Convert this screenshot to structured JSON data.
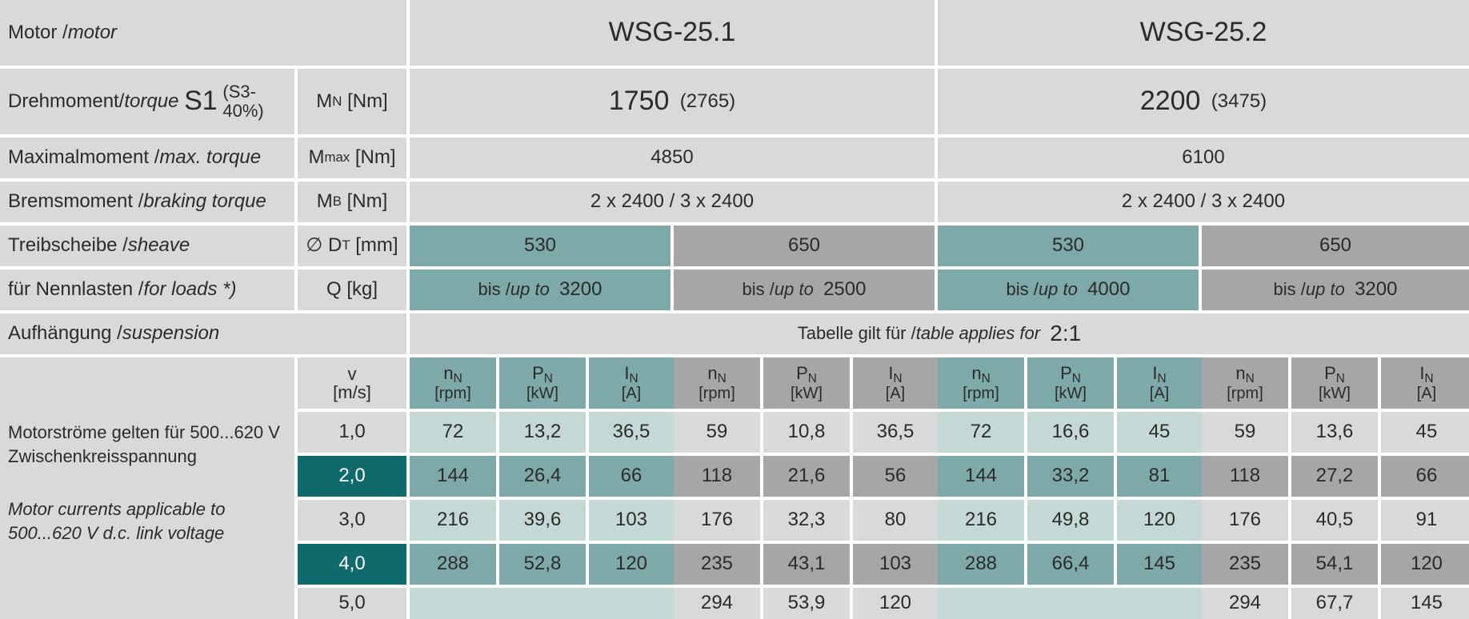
{
  "row_motor": {
    "label_de": "Motor / ",
    "label_en": "motor",
    "m1": "WSG-25.1",
    "m2": "WSG-25.2"
  },
  "row_torque": {
    "label_de": "Drehmoment/",
    "label_en": "torque",
    "s1": "S1",
    "s3": "(S3-40%)",
    "sym": "M",
    "sub": "N",
    "unit": "[Nm]",
    "v1": "1750",
    "v1b": "(2765)",
    "v2": "2200",
    "v2b": "(3475)"
  },
  "row_maxtorque": {
    "label_de": "Maximalmoment / ",
    "label_en": "max. torque",
    "sym": "M",
    "sub": "max",
    "unit": "[Nm]",
    "v1": "4850",
    "v2": "6100"
  },
  "row_brake": {
    "label_de": "Bremsmoment / ",
    "label_en": "braking torque",
    "sym": "M",
    "sub": "B",
    "unit": "[Nm]",
    "v1": "2 x 2400 / 3 x 2400",
    "v2": "2 x 2400 / 3 x 2400"
  },
  "row_sheave": {
    "label_de": "Treibscheibe /",
    "label_en": "sheave",
    "sym": "∅ D",
    "sub": "T",
    "unit": "[mm]",
    "values": [
      "530",
      "650",
      "530",
      "650"
    ]
  },
  "row_loads": {
    "label_de": "für Nennlasten /",
    "label_en": "for loads *)",
    "unit": "Q [kg]",
    "bis": "bis /",
    "upto": "up to",
    "values": [
      "3200",
      "2500",
      "4000",
      "3200"
    ]
  },
  "row_susp": {
    "label_de": "Aufhängung /",
    "label_en": "suspension",
    "text_de": "Tabelle gilt für / ",
    "text_en": "table applies for",
    "ratio": "2:1"
  },
  "speed_header": {
    "v": "v",
    "unit": "[m/s]"
  },
  "col_headers": [
    {
      "sym": "n",
      "sub": "N",
      "unit": "[rpm]"
    },
    {
      "sym": "P",
      "sub": "N",
      "unit": "[kW]"
    },
    {
      "sym": "I",
      "sub": "N",
      "unit": "[A]"
    }
  ],
  "note": {
    "de_line1": "Motorströme gelten für 500...620 V",
    "de_line2": "Zwischenkreisspannung",
    "en_line1": "Motor currents applicable to",
    "en_line2": "500...620 V d.c. link voltage"
  },
  "speeds": [
    "1,0",
    "2,0",
    "3,0",
    "4,0",
    "5,0"
  ],
  "table": [
    [
      "72",
      "13,2",
      "36,5",
      "59",
      "10,8",
      "36,5",
      "72",
      "16,6",
      "45",
      "59",
      "13,6",
      "45"
    ],
    [
      "144",
      "26,4",
      "66",
      "118",
      "21,6",
      "56",
      "144",
      "33,2",
      "81",
      "118",
      "27,2",
      "66"
    ],
    [
      "216",
      "39,6",
      "103",
      "176",
      "32,3",
      "80",
      "216",
      "49,8",
      "120",
      "176",
      "40,5",
      "91"
    ],
    [
      "288",
      "52,8",
      "120",
      "235",
      "43,1",
      "103",
      "288",
      "66,4",
      "145",
      "235",
      "54,1",
      "120"
    ],
    [
      "",
      "",
      "",
      "294",
      "53,9",
      "120",
      "",
      "",
      "",
      "294",
      "67,7",
      "145"
    ]
  ],
  "colors": {
    "teal": "#7ea9a9",
    "light_teal": "#c4d8d6",
    "gray": "#a6a6a6",
    "dark_teal": "#0f6b6b",
    "cell": "#d9d9d9"
  }
}
